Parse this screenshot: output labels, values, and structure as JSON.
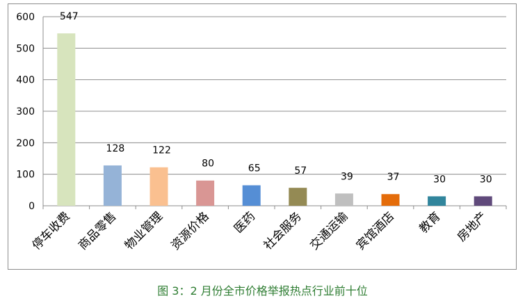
{
  "caption": "图 3：2 月份全市价格举报热点行业前十位",
  "chart_data": {
    "type": "bar",
    "categories": [
      "停车收费",
      "商品零售",
      "物业管理",
      "资源价格",
      "医药",
      "社会服务",
      "交通运输",
      "宾馆酒店",
      "教育",
      "房地产"
    ],
    "values": [
      547,
      128,
      122,
      80,
      65,
      57,
      39,
      37,
      30,
      30
    ],
    "colors": [
      "#d7e4bd",
      "#95b3d7",
      "#fac090",
      "#d99694",
      "#558ed5",
      "#948a54",
      "#bfbfbf",
      "#e46c0a",
      "#31859c",
      "#604a7b"
    ],
    "ylim": [
      0,
      600
    ],
    "yticks": [
      0,
      100,
      200,
      300,
      400,
      500,
      600
    ],
    "grid": true,
    "legend": "none"
  }
}
